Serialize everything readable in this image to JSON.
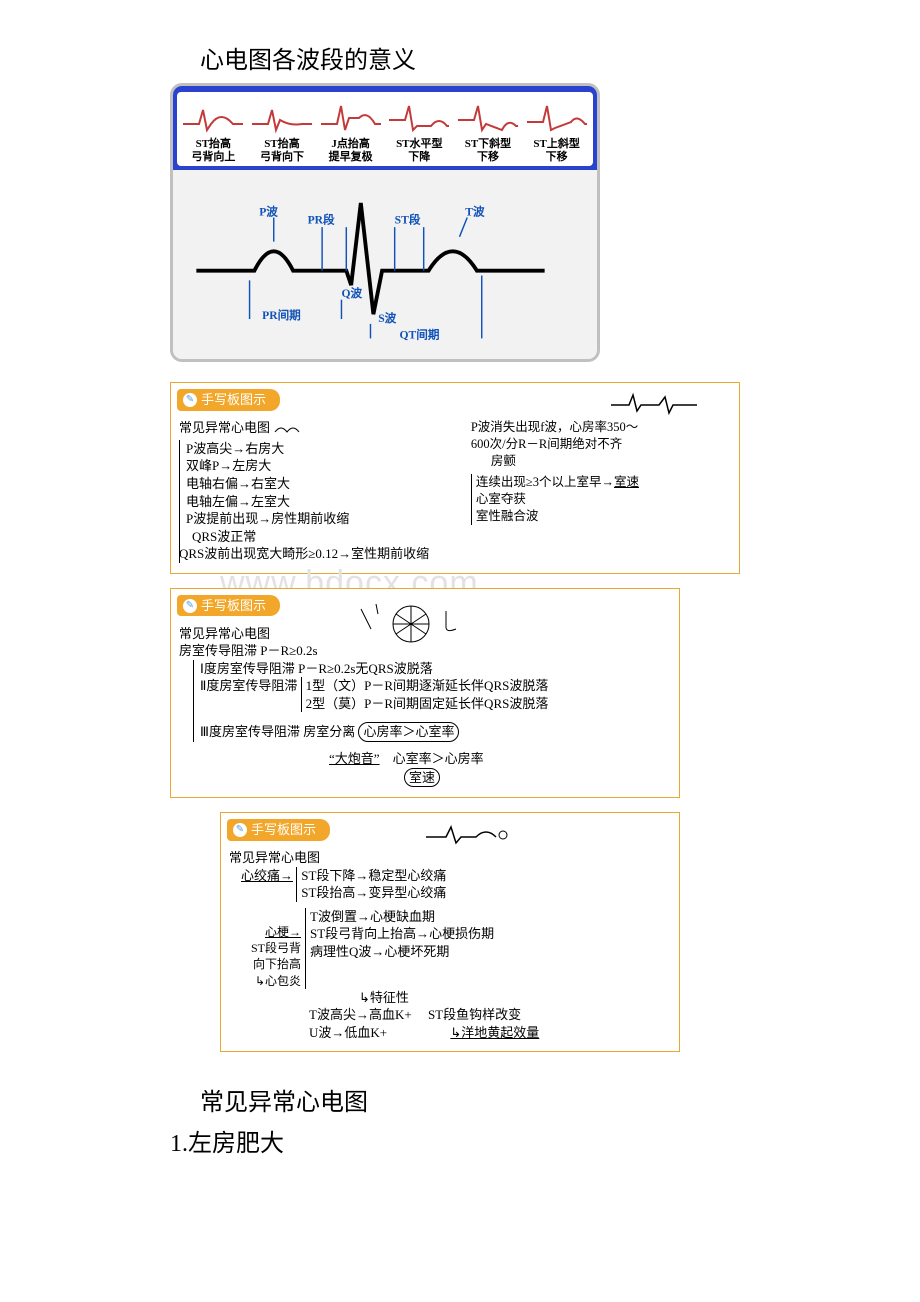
{
  "title": "心电图各波段的意义",
  "colors": {
    "panel_border": "#e9a833",
    "header_bg": "#f2a72a",
    "header_fg": "#ffffff",
    "blue_frame": "#2943ce",
    "gray_frame": "#c0c0c0",
    "ecg_line": "#c43a3a",
    "ecg_black": "#000000",
    "ecg_label": "#1152b8",
    "watermark": "#e2e2e2"
  },
  "fig1": {
    "waves": [
      {
        "name": "ST抬高",
        "sub": "弓背向上"
      },
      {
        "name": "ST抬高",
        "sub": "弓背向下"
      },
      {
        "name": "J点抬高",
        "sub": "提早复极"
      },
      {
        "name": "ST水平型",
        "sub": "下降"
      },
      {
        "name": "ST下斜型",
        "sub": "下移"
      },
      {
        "name": "ST上斜型",
        "sub": "下移"
      }
    ],
    "labels": {
      "p": "P波",
      "pr_seg": "PR段",
      "st_seg": "ST段",
      "t": "T波",
      "q": "Q波",
      "s": "S波",
      "pr_int": "PR间期",
      "qt_int": "QT间期"
    }
  },
  "panel_header": "手写板图示",
  "panel1": {
    "heading": "常见异常心电图",
    "left": [
      "P波高尖→右房大",
      "双峰P→左房大",
      "电轴右偏→右室大",
      "电轴左偏→左室大",
      "P波提前出现→房性期前收缩",
      "　QRS波正常",
      "QRS波前出现宽大畸形≥0.12→室性期前收缩"
    ],
    "right_top": "P波消失出现f波，心房率350～\n600次/分R－R间期绝对不齐",
    "right_fanchan": "房颤",
    "right_list": [
      "连续出现≥3个以上室早→室速",
      "心室夺获",
      "室性融合波"
    ]
  },
  "watermark": "www.bdocx.com",
  "panel2": {
    "heading": "常见异常心电图",
    "line_av": "房室传导阻滞  P－R≥0.2s",
    "deg1": "Ⅰ度房室传导阻滞  P－R≥0.2s无QRS波脱落",
    "deg2a": "Ⅱ度房室传导阻滞",
    "deg2b1": "1型（文）P－R间期逐渐延长伴QRS波脱落",
    "deg2b2": "2型（莫）P－R间期固定延长伴QRS波脱落",
    "deg3": "Ⅲ度房室传导阻滞  房室分离",
    "deg3_circ": "心房率＞心室率",
    "cannon": "“大炮音”",
    "cannon_txt": "心室率＞心房率",
    "cannon_circ": "室速"
  },
  "panel3": {
    "heading": "常见异常心电图",
    "angina": "心绞痛→",
    "angina_list": [
      "ST段下降→稳定型心绞痛",
      "ST段抬高→变异型心绞痛"
    ],
    "mi": "心梗→",
    "mi_list": [
      "T波倒置→心梗缺血期",
      "ST段弓背向上抬高→心梗损伤期",
      "病理性Q波→心梗坏死期"
    ],
    "st_note_a": "ST段弓背",
    "st_note_b": "向下抬高",
    "st_note_c": "↳心包炎",
    "char": "↳特征性",
    "kplus": "T波高尖→高血K+",
    "kminus": "U波→低血K+",
    "digoxin_a": "ST段鱼钩样改变",
    "digoxin_b": "↳洋地黄起效量"
  },
  "footer": {
    "title": "常见异常心电图",
    "sub": "1.左房肥大"
  }
}
